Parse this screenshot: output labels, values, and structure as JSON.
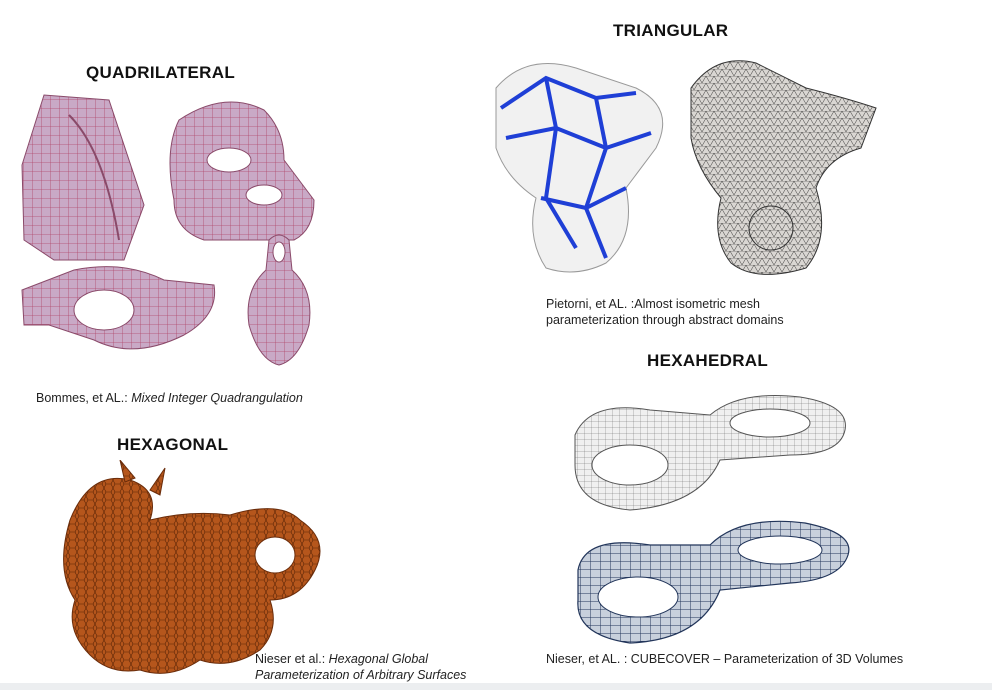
{
  "sections": {
    "quadrilateral": {
      "title": "QUADRILATERAL",
      "caption_author": "Bommes, et AL.: ",
      "caption_title": "Mixed Integer Quadrangulation"
    },
    "triangular": {
      "title": "TRIANGULAR",
      "caption_line1": "Pietorni, et AL. :Almost isometric mesh",
      "caption_line2": "parameterization through abstract domains"
    },
    "hexagonal": {
      "title": "HEXAGONAL",
      "caption_author": "Nieser et al.: ",
      "caption_title_line1": "Hexagonal Global",
      "caption_title_line2": "Parameterization of Arbitrary Surfaces"
    },
    "hexahedral": {
      "title": "HEXAHEDRAL",
      "caption": "Nieser, et AL. : CUBECOVER – Parameterization of 3D Volumes"
    }
  },
  "colors": {
    "quad_fill": "#c9a9c6",
    "quad_line": "#b0486a",
    "tri_stroke": "#1f3fd6",
    "hex_fill": "#b5561c",
    "hexahedral_line": "#22355a"
  }
}
